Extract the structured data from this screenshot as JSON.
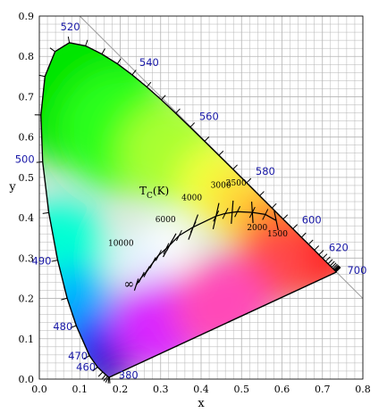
{
  "chart_data": {
    "type": "scatter",
    "xlabel": "x",
    "ylabel": "y",
    "xlim": [
      0.0,
      0.8
    ],
    "ylim": [
      0.0,
      0.9
    ],
    "grid": true,
    "x_ticks": [
      "0.0",
      "0.1",
      "0.2",
      "0.3",
      "0.4",
      "0.5",
      "0.6",
      "0.7",
      "0.8"
    ],
    "y_ticks": [
      "0.0",
      "0.1",
      "0.2",
      "0.3",
      "0.4",
      "0.5",
      "0.6",
      "0.7",
      "0.8",
      "0.9"
    ],
    "spectral_locus": [
      [
        0.1741,
        0.005
      ],
      [
        0.1738,
        0.0049
      ],
      [
        0.1733,
        0.0048
      ],
      [
        0.1726,
        0.0048
      ],
      [
        0.1714,
        0.0051
      ],
      [
        0.1689,
        0.0069
      ],
      [
        0.1644,
        0.0109
      ],
      [
        0.1566,
        0.0177
      ],
      [
        0.144,
        0.0297
      ],
      [
        0.1241,
        0.0578
      ],
      [
        0.0913,
        0.1327
      ],
      [
        0.0687,
        0.2007
      ],
      [
        0.0454,
        0.295
      ],
      [
        0.0235,
        0.4127
      ],
      [
        0.0082,
        0.5384
      ],
      [
        0.0039,
        0.6548
      ],
      [
        0.0139,
        0.7502
      ],
      [
        0.0389,
        0.812
      ],
      [
        0.0743,
        0.8338
      ],
      [
        0.1142,
        0.8262
      ],
      [
        0.1547,
        0.8059
      ],
      [
        0.1929,
        0.7816
      ],
      [
        0.2296,
        0.7543
      ],
      [
        0.2658,
        0.7243
      ],
      [
        0.3016,
        0.6923
      ],
      [
        0.3373,
        0.6589
      ],
      [
        0.3731,
        0.6245
      ],
      [
        0.4087,
        0.5896
      ],
      [
        0.4441,
        0.5547
      ],
      [
        0.4788,
        0.5202
      ],
      [
        0.5125,
        0.4866
      ],
      [
        0.5448,
        0.4544
      ],
      [
        0.5752,
        0.4242
      ],
      [
        0.6029,
        0.3965
      ],
      [
        0.627,
        0.3725
      ],
      [
        0.6482,
        0.3514
      ],
      [
        0.6658,
        0.334
      ],
      [
        0.6801,
        0.3197
      ],
      [
        0.6915,
        0.3083
      ],
      [
        0.7006,
        0.2993
      ],
      [
        0.7079,
        0.292
      ],
      [
        0.714,
        0.2859
      ],
      [
        0.719,
        0.2809
      ],
      [
        0.723,
        0.277
      ],
      [
        0.726,
        0.274
      ],
      [
        0.7283,
        0.2717
      ],
      [
        0.73,
        0.27
      ],
      [
        0.7311,
        0.2689
      ],
      [
        0.732,
        0.268
      ],
      [
        0.7327,
        0.2673
      ],
      [
        0.7334,
        0.2666
      ],
      [
        0.734,
        0.266
      ],
      [
        0.7344,
        0.2656
      ],
      [
        0.7346,
        0.2654
      ],
      [
        0.7347,
        0.2653
      ]
    ],
    "wavelength_labels": [
      {
        "nm": "380",
        "x": 0.1741,
        "y": 0.005
      },
      {
        "nm": "460",
        "x": 0.144,
        "y": 0.0297
      },
      {
        "nm": "470",
        "x": 0.1241,
        "y": 0.0578
      },
      {
        "nm": "480",
        "x": 0.0913,
        "y": 0.1327
      },
      {
        "nm": "490",
        "x": 0.0454,
        "y": 0.295
      },
      {
        "nm": "500",
        "x": 0.0082,
        "y": 0.5384
      },
      {
        "nm": "520",
        "x": 0.0743,
        "y": 0.8338
      },
      {
        "nm": "540",
        "x": 0.2296,
        "y": 0.7543
      },
      {
        "nm": "560",
        "x": 0.3731,
        "y": 0.6245
      },
      {
        "nm": "580",
        "x": 0.5125,
        "y": 0.4866
      },
      {
        "nm": "600",
        "x": 0.627,
        "y": 0.3725
      },
      {
        "nm": "620",
        "x": 0.6915,
        "y": 0.3083
      },
      {
        "nm": "700",
        "x": 0.7347,
        "y": 0.2653
      }
    ],
    "planckian_locus": [
      [
        0.2399,
        0.2342
      ],
      [
        0.2525,
        0.2522
      ],
      [
        0.2653,
        0.2661
      ],
      [
        0.2806,
        0.2883
      ],
      [
        0.2949,
        0.3067
      ],
      [
        0.3135,
        0.3236
      ],
      [
        0.3221,
        0.3318
      ],
      [
        0.3457,
        0.3559
      ],
      [
        0.3805,
        0.3768
      ],
      [
        0.4369,
        0.4041
      ],
      [
        0.4599,
        0.4106
      ],
      [
        0.4898,
        0.4151
      ],
      [
        0.5267,
        0.4133
      ],
      [
        0.5586,
        0.4081
      ],
      [
        0.5857,
        0.3931
      ]
    ],
    "isotherms": [
      {
        "label": "∞",
        "x": 0.2399,
        "y": 0.2342
      },
      {
        "label": "10000",
        "x": 0.2806,
        "y": 0.2883
      },
      {
        "label": "6000",
        "x": 0.3221,
        "y": 0.3318
      },
      {
        "label": "4000",
        "x": 0.3805,
        "y": 0.3768
      },
      {
        "label": "3000",
        "x": 0.4369,
        "y": 0.4041
      },
      {
        "label": "2500",
        "x": 0.4769,
        "y": 0.4137
      },
      {
        "label": "2000",
        "x": 0.5267,
        "y": 0.4133
      },
      {
        "label": "1500",
        "x": 0.5857,
        "y": 0.3931
      }
    ],
    "tc_label": {
      "base": "T",
      "sub": "C",
      "rest": "(K)"
    }
  },
  "colors": {
    "grid": "#b4b4b4",
    "axis": "#000000",
    "wavelength_label": "#1a1aa8"
  }
}
